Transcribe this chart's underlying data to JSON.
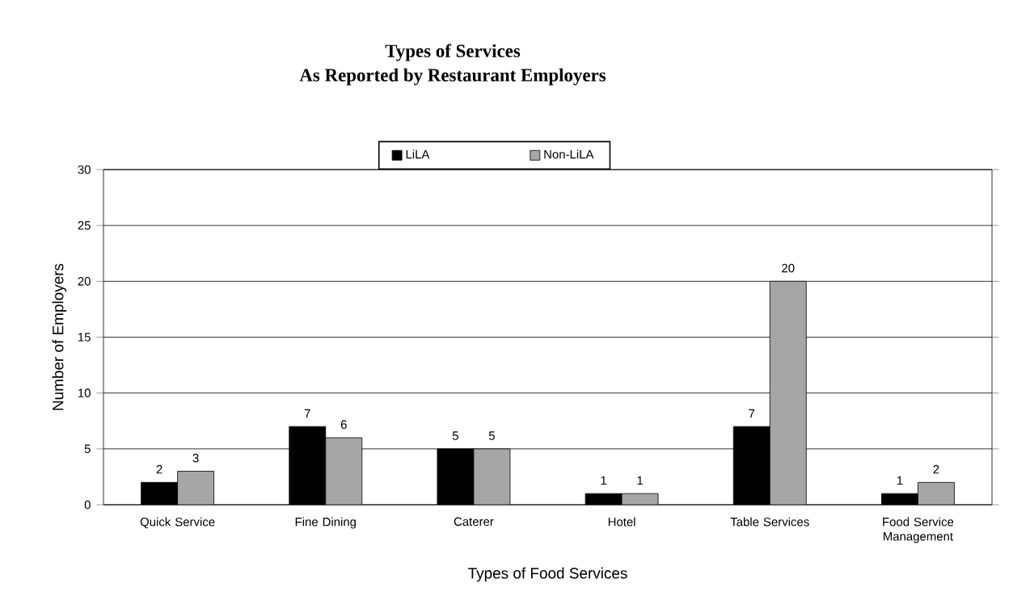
{
  "chart_data": {
    "type": "bar",
    "title": "Types of Services\nAs Reported by Restaurant Employers",
    "xlabel": "Types of  Food Services",
    "ylabel": "Number of Employers",
    "categories": [
      "Quick Service",
      "Fine Dining",
      "Caterer",
      "Hotel",
      "Table Services",
      "Food Service Management"
    ],
    "series": [
      {
        "name": "LiLA",
        "color": "#000000",
        "values": [
          2,
          7,
          5,
          1,
          7,
          1
        ]
      },
      {
        "name": "Non-LiLA",
        "color": "#a6a6a6",
        "values": [
          3,
          6,
          5,
          1,
          20,
          2
        ]
      }
    ],
    "ylim": [
      0,
      30
    ],
    "yticks": [
      0,
      5,
      10,
      15,
      20,
      25,
      30
    ],
    "grid": "y",
    "legend": "top",
    "data_labels": true
  }
}
